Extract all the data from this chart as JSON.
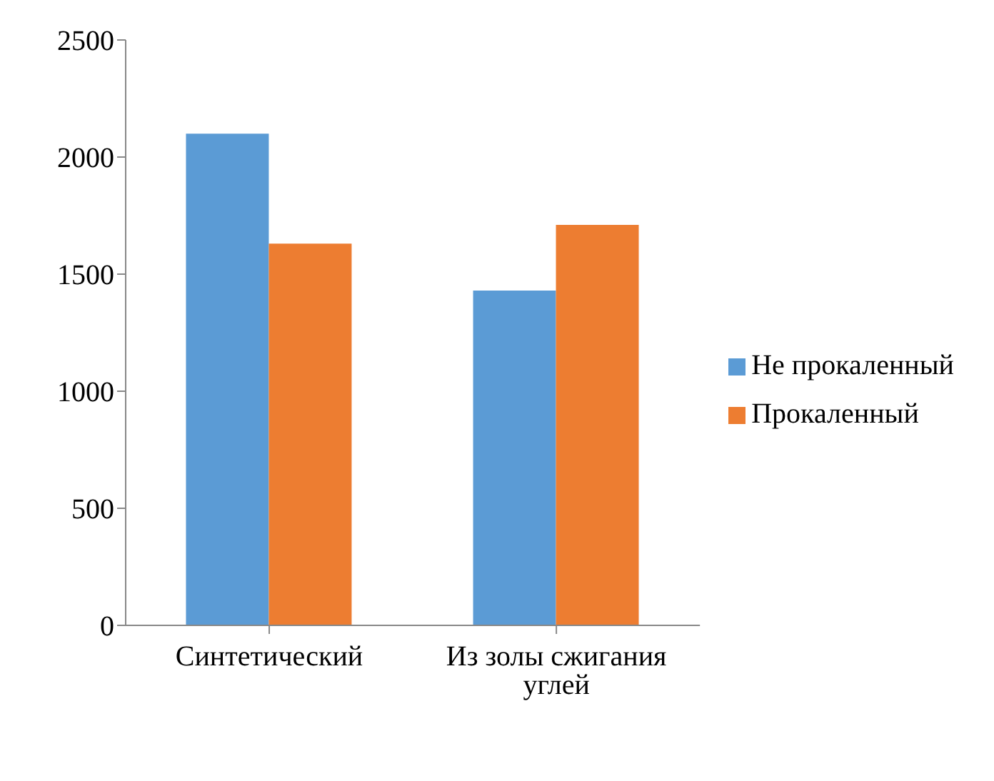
{
  "chart_data": {
    "type": "bar",
    "categories": [
      "Синтетический",
      "Из золы сжигания углей"
    ],
    "series": [
      {
        "name": "Не прокаленный",
        "color": "#5b9bd5",
        "values": [
          2100,
          1430
        ]
      },
      {
        "name": "Прокаленный",
        "color": "#ed7d31",
        "values": [
          1630,
          1710
        ]
      }
    ],
    "ylim": [
      0,
      2500
    ],
    "yticks": [
      0,
      500,
      1000,
      1500,
      2000,
      2500
    ],
    "legend": "right"
  }
}
